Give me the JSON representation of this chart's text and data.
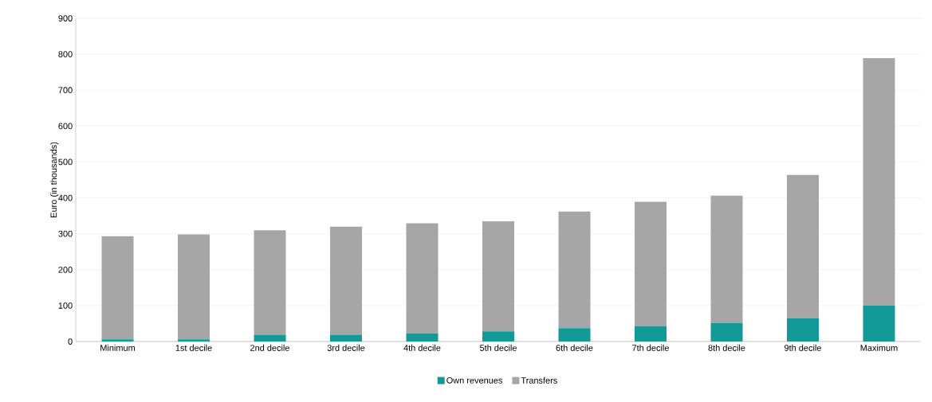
{
  "chart_data": {
    "type": "bar",
    "stacked": true,
    "ylabel": "Euro  (in thousands)",
    "categories": [
      "Minimum",
      "1st decile",
      "2nd decile",
      "3rd decile",
      "4th decile",
      "5th decile",
      "6th decile",
      "7th decile",
      "8th decile",
      "9th decile",
      "Maximum"
    ],
    "series": [
      {
        "name": "Own revenues",
        "color": "#139a98",
        "values": [
          6,
          6,
          19,
          19,
          23,
          28,
          37,
          42,
          51,
          65,
          100
        ]
      },
      {
        "name": "Transfers",
        "color": "#a6a6a6",
        "values": [
          287,
          292,
          291,
          301,
          306,
          307,
          325,
          347,
          355,
          399,
          689
        ]
      }
    ],
    "ylim": [
      0,
      900
    ],
    "yticks": [
      0,
      100,
      200,
      300,
      400,
      500,
      600,
      700,
      800,
      900
    ],
    "grid": "y",
    "legend": "bottom"
  }
}
